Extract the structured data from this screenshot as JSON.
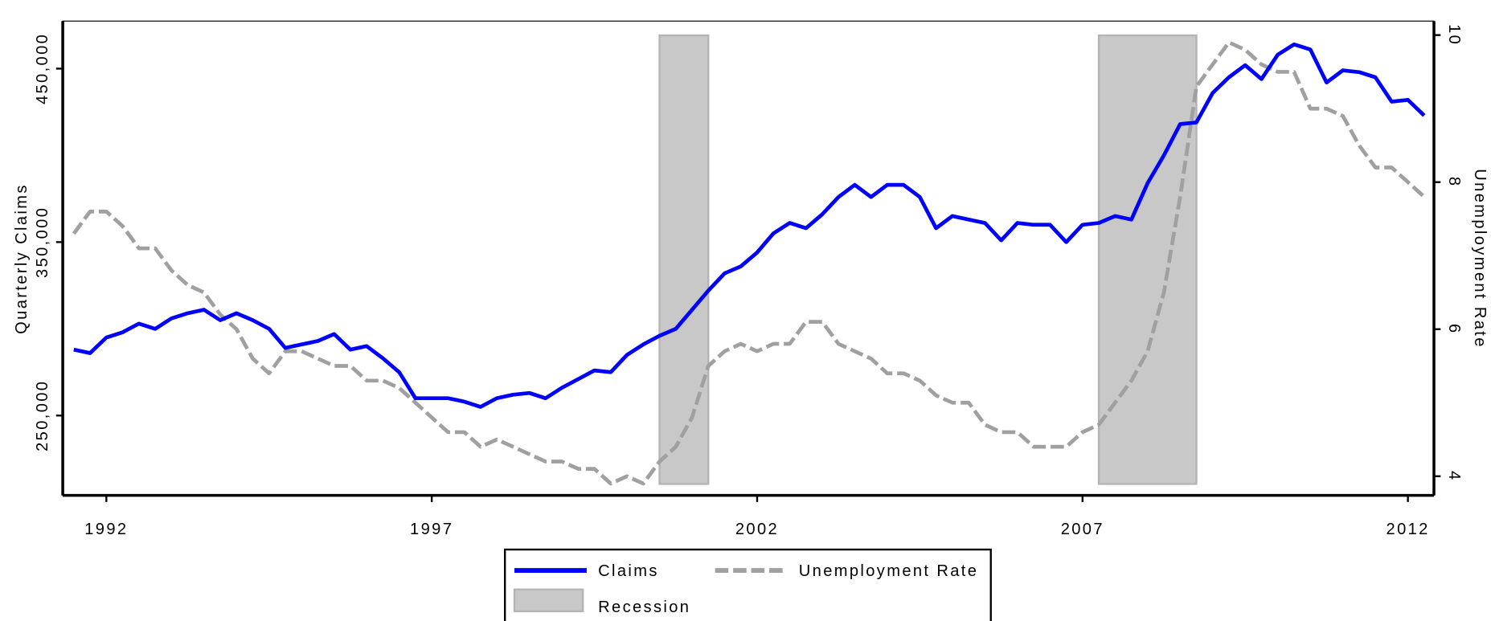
{
  "chart_data": {
    "type": "line",
    "x": [
      1991.5,
      1991.75,
      1992,
      1992.25,
      1992.5,
      1992.75,
      1993,
      1993.25,
      1993.5,
      1993.75,
      1994,
      1994.25,
      1994.5,
      1994.75,
      1995,
      1995.25,
      1995.5,
      1995.75,
      1996,
      1996.25,
      1996.5,
      1996.75,
      1997,
      1997.25,
      1997.5,
      1997.75,
      1998,
      1998.25,
      1998.5,
      1998.75,
      1999,
      1999.25,
      1999.5,
      1999.75,
      2000,
      2000.25,
      2000.5,
      2000.75,
      2001,
      2001.25,
      2001.5,
      2001.75,
      2002,
      2002.25,
      2002.5,
      2002.75,
      2003,
      2003.25,
      2003.5,
      2003.75,
      2004,
      2004.25,
      2004.5,
      2004.75,
      2005,
      2005.25,
      2005.5,
      2005.75,
      2006,
      2006.25,
      2006.5,
      2006.75,
      2007,
      2007.25,
      2007.5,
      2007.75,
      2008,
      2008.25,
      2008.5,
      2008.75,
      2009,
      2009.25,
      2009.5,
      2009.75,
      2010,
      2010.25,
      2010.5,
      2010.75,
      2011,
      2011.25,
      2011.5,
      2011.75,
      2012,
      2012.25
    ],
    "series": [
      {
        "name": "Claims",
        "color": "#0000ff",
        "dashed": false,
        "values": [
          288000,
          286000,
          295000,
          298000,
          303000,
          300000,
          306000,
          309000,
          311000,
          305000,
          309000,
          305000,
          300000,
          289000,
          291000,
          293000,
          297000,
          288000,
          290000,
          283000,
          275000,
          260000,
          260000,
          260000,
          258000,
          255000,
          260000,
          262000,
          263000,
          260000,
          266000,
          271000,
          276000,
          275000,
          285000,
          291000,
          296000,
          300000,
          311000,
          322000,
          332000,
          336000,
          344000,
          355000,
          361000,
          358000,
          366000,
          376000,
          383000,
          376000,
          383000,
          383000,
          376000,
          358000,
          365000,
          363000,
          361000,
          351000,
          361000,
          360000,
          360000,
          350000,
          360000,
          361000,
          365000,
          363000,
          384000,
          400000,
          418000,
          419000,
          436000,
          445000,
          452000,
          444000,
          458000,
          464000,
          461000,
          442000,
          449000,
          448000,
          445000,
          431000,
          432000,
          423000
        ]
      },
      {
        "name": "Unemployment Rate",
        "color": "#a0a0a0",
        "dashed": true,
        "axis": "y2",
        "values": [
          7.3,
          7.6,
          7.6,
          7.4,
          7.1,
          7.1,
          6.8,
          6.6,
          6.5,
          6.2,
          6.0,
          5.6,
          5.4,
          5.7,
          5.7,
          5.6,
          5.5,
          5.5,
          5.3,
          5.3,
          5.2,
          5.0,
          4.8,
          4.6,
          4.6,
          4.4,
          4.5,
          4.4,
          4.3,
          4.2,
          4.2,
          4.1,
          4.1,
          3.9,
          4.0,
          3.9,
          4.2,
          4.4,
          4.8,
          5.5,
          5.7,
          5.8,
          5.7,
          5.8,
          5.8,
          6.1,
          6.1,
          5.8,
          5.7,
          5.6,
          5.4,
          5.4,
          5.3,
          5.1,
          5.0,
          5.0,
          4.7,
          4.6,
          4.6,
          4.4,
          4.4,
          4.4,
          4.6,
          4.7,
          5.0,
          5.3,
          5.7,
          6.5,
          7.8,
          9.3,
          9.6,
          9.9,
          9.8,
          9.6,
          9.5,
          9.5,
          9.0,
          9.0,
          8.9,
          8.5,
          8.2,
          8.2,
          8.0,
          7.8
        ]
      }
    ],
    "recessions": {
      "name": "Recession",
      "color": "#c8c8c8",
      "spans": [
        {
          "start": 2000.5,
          "end": 2001.25
        },
        {
          "start": 2007.25,
          "end": 2008.75
        }
      ]
    },
    "y_label": "Quarterly Claims",
    "y2_label": "Unemployment Rate",
    "xlim": [
      1991.33,
      2012.4
    ],
    "xticks": [
      1992,
      1997,
      2002,
      2007,
      2012
    ],
    "ylim": [
      204000,
      477400
    ],
    "yticks": [
      {
        "value": 250000,
        "label": "250,000"
      },
      {
        "value": 350000,
        "label": "350,000"
      },
      {
        "value": 450000,
        "label": "450,000"
      }
    ],
    "y2lim": [
      3.74,
      10.19
    ],
    "y2ticks": [
      4,
      6,
      8,
      10
    ],
    "legend": "bottom"
  }
}
